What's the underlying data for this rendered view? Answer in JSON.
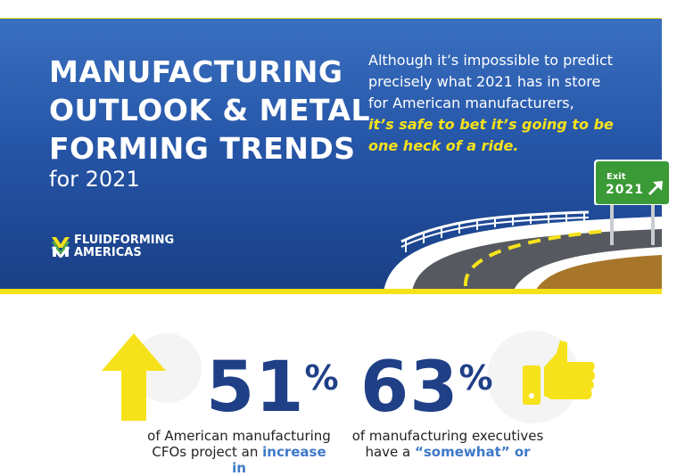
{
  "hero": {
    "title_lines": [
      "MANUFACTURING",
      "OUTLOOK & METAL",
      "FORMING TRENDS"
    ],
    "subtitle": "for 2021",
    "intro_lines": [
      "Although it’s impossible to predict",
      "precisely what 2021 has in store",
      "for American manufacturers,"
    ],
    "intro_emphasis_lines": [
      "it’s safe to bet it’s going to be",
      "one heck of a ride."
    ],
    "logo_line1": "FLUIDFORMING",
    "logo_line2": "AMERICAS",
    "sign_label": "Exit",
    "sign_year": "2021"
  },
  "stats": [
    {
      "number": "51",
      "symbol": "%",
      "desc_line1": "of American manufacturing",
      "desc_line2_prefix": "CFOs project an ",
      "desc_line2_highlight": "increase in"
    },
    {
      "number": "63",
      "symbol": "%",
      "desc_line1": "of manufacturing executives",
      "desc_line2_prefix": "have a ",
      "desc_line2_highlight": "“somewhat” or"
    }
  ],
  "colors": {
    "accent_yellow": "#f6e21a",
    "hero_blue": "#2656a8",
    "stat_blue": "#1f3f87",
    "highlight_blue": "#3e79c9",
    "sign_green": "#3a9a35"
  },
  "icons": [
    "fluidforming-logo-icon",
    "arrow-up-icon",
    "thumbs-up-icon",
    "exit-arrow-icon"
  ]
}
